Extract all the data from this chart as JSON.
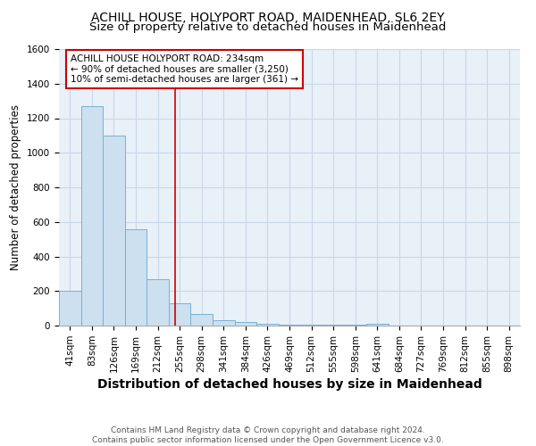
{
  "title": "ACHILL HOUSE, HOLYPORT ROAD, MAIDENHEAD, SL6 2EY",
  "subtitle": "Size of property relative to detached houses in Maidenhead",
  "xlabel": "Distribution of detached houses by size in Maidenhead",
  "ylabel": "Number of detached properties",
  "categories": [
    "41sqm",
    "83sqm",
    "126sqm",
    "169sqm",
    "212sqm",
    "255sqm",
    "298sqm",
    "341sqm",
    "384sqm",
    "426sqm",
    "469sqm",
    "512sqm",
    "555sqm",
    "598sqm",
    "641sqm",
    "684sqm",
    "727sqm",
    "769sqm",
    "812sqm",
    "855sqm",
    "898sqm"
  ],
  "values": [
    200,
    1270,
    1100,
    555,
    270,
    130,
    65,
    30,
    20,
    10,
    5,
    5,
    3,
    3,
    10,
    2,
    2,
    2,
    2,
    2,
    2
  ],
  "bar_color": "#cce0f0",
  "bar_edge_color": "#7ab0d4",
  "red_line_x": 4.78,
  "annotation_line1": "ACHILL HOUSE HOLYPORT ROAD: 234sqm",
  "annotation_line2": "← 90% of detached houses are smaller (3,250)",
  "annotation_line3": "10% of semi-detached houses are larger (361) →",
  "annotation_box_color": "#ffffff",
  "annotation_box_edge_color": "#cc0000",
  "ylim": [
    0,
    1600
  ],
  "yticks": [
    0,
    200,
    400,
    600,
    800,
    1000,
    1200,
    1400,
    1600
  ],
  "footer": "Contains HM Land Registry data © Crown copyright and database right 2024.\nContains public sector information licensed under the Open Government Licence v3.0.",
  "title_fontsize": 10,
  "subtitle_fontsize": 9.5,
  "xlabel_fontsize": 10,
  "ylabel_fontsize": 8.5,
  "tick_fontsize": 7.5,
  "annotation_fontsize": 7.5,
  "footer_fontsize": 6.5,
  "grid_color": "#c8d8e8",
  "background_color": "#e8f0f8"
}
